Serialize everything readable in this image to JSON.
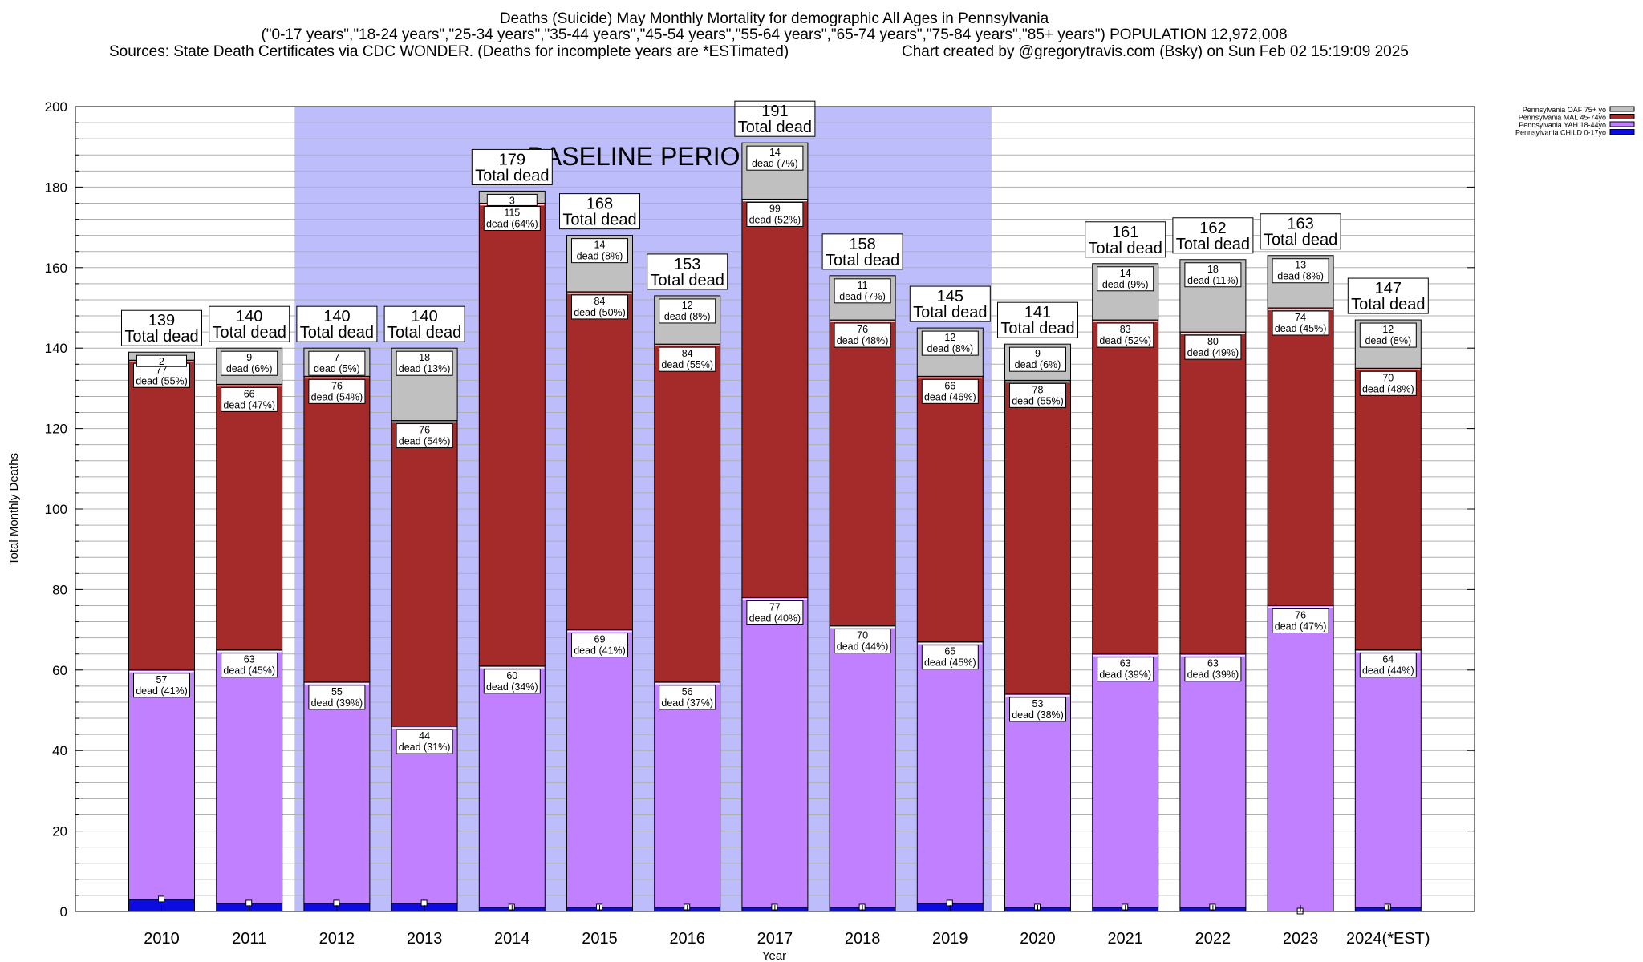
{
  "title": {
    "line1": "Deaths (Suicide) May Monthly Mortality for demographic All Ages in Pennsylvania",
    "line2": "(\"0-17 years\",\"18-24 years\",\"25-34 years\",\"35-44 years\",\"45-54 years\",\"55-64 years\",\"65-74 years\",\"75-84 years\",\"85+ years\") POPULATION 12,972,008",
    "sources": "Sources: State Death Certificates via CDC WONDER. (Deaths for incomplete years are *ESTimated)",
    "credit": "Chart created by @gregorytravis.com (Bsky) on Sun Feb 02 15:19:09 2025"
  },
  "chart_data": {
    "type": "bar",
    "stacked": true,
    "xlabel": "Year",
    "ylabel": "Total Monthly Deaths",
    "ylim": [
      0,
      200
    ],
    "yticks": [
      0,
      20,
      40,
      60,
      80,
      100,
      120,
      140,
      160,
      180,
      200
    ],
    "categories": [
      "2010",
      "2011",
      "2012",
      "2013",
      "2014",
      "2015",
      "2016",
      "2017",
      "2018",
      "2019",
      "2020",
      "2021",
      "2022",
      "2023",
      "2024(*EST)"
    ],
    "baseline": {
      "label": "BASELINE PERIOD",
      "from": "2012",
      "to": "2019",
      "color": "#bdbdfb"
    },
    "legend_position": "top-right",
    "series": [
      {
        "name": "Pennsylvania CHILD 0-17yo",
        "color": "#0c0ce0",
        "values": [
          3,
          2,
          2,
          2,
          1,
          1,
          1,
          1,
          1,
          2,
          1,
          1,
          1,
          0,
          1
        ]
      },
      {
        "name": "Pennsylvania YAH 18-44yo",
        "color": "#c080ff",
        "values": [
          57,
          63,
          55,
          44,
          60,
          69,
          56,
          77,
          70,
          65,
          53,
          63,
          63,
          76,
          64
        ],
        "labels": [
          "dead (41%)",
          "dead (45%)",
          "dead (39%)",
          "dead (31%)",
          "dead (34%)",
          "dead (41%)",
          "dead (37%)",
          "dead (40%)",
          "dead (44%)",
          "dead (45%)",
          "dead (38%)",
          "dead (39%)",
          "dead (39%)",
          "dead (47%)",
          "dead (44%)"
        ]
      },
      {
        "name": "Pennsylvania MAL 45-74yo",
        "color": "#a52a2a",
        "values": [
          77,
          66,
          76,
          76,
          115,
          84,
          84,
          99,
          76,
          66,
          78,
          83,
          80,
          74,
          70
        ],
        "labels": [
          "dead (55%)",
          "dead (47%)",
          "dead (54%)",
          "dead (54%)",
          "dead (64%)",
          "dead (50%)",
          "dead (55%)",
          "dead (52%)",
          "dead (48%)",
          "dead (46%)",
          "dead (55%)",
          "dead (52%)",
          "dead (49%)",
          "dead (45%)",
          "dead (48%)"
        ]
      },
      {
        "name": "Pennsylvania OAF 75+ yo",
        "color": "#c0c0c0",
        "values": [
          2,
          9,
          7,
          18,
          3,
          14,
          12,
          14,
          11,
          12,
          9,
          14,
          18,
          13,
          12
        ],
        "labels": [
          "",
          "dead (6%)",
          "dead (5%)",
          "dead (13%)",
          "",
          "dead (8%)",
          "dead (8%)",
          "dead (7%)",
          "dead (7%)",
          "dead (8%)",
          "dead (6%)",
          "dead (9%)",
          "dead (11%)",
          "dead (8%)",
          "dead (8%)"
        ]
      }
    ],
    "totals": [
      139,
      140,
      140,
      140,
      179,
      168,
      153,
      191,
      158,
      145,
      141,
      161,
      162,
      163,
      147
    ],
    "total_suffix": "Total dead"
  }
}
